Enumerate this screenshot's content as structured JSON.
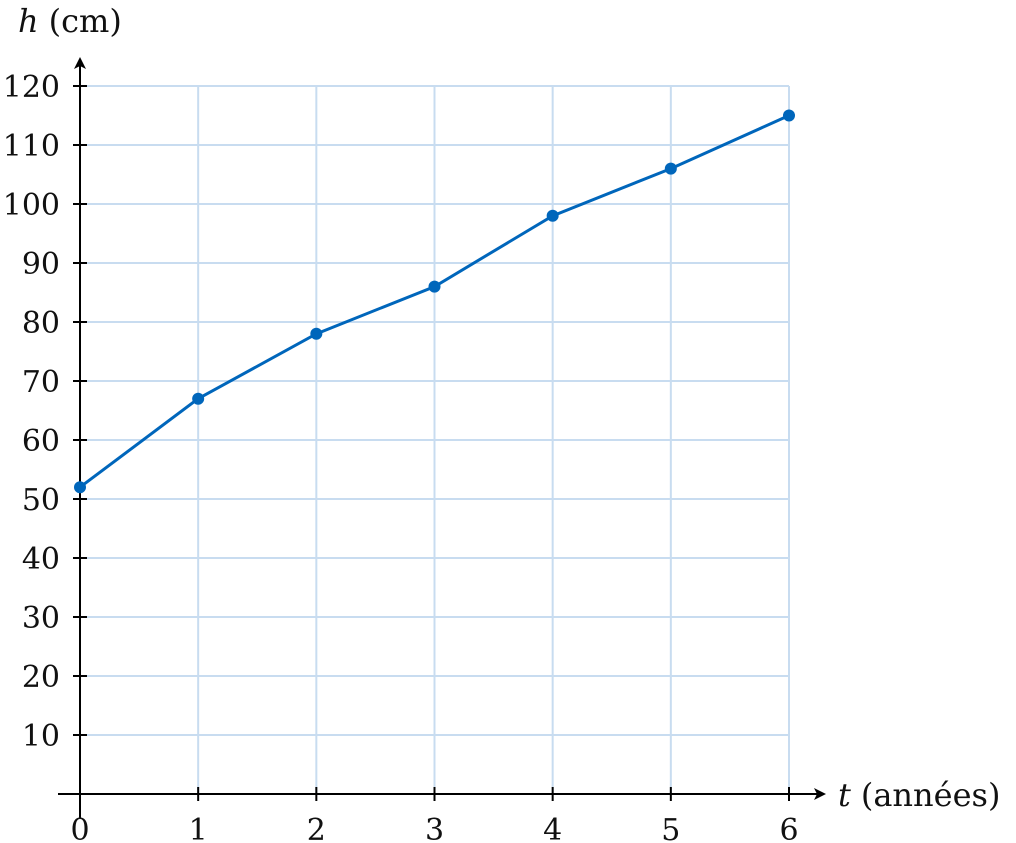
{
  "chart_data": {
    "type": "line",
    "xlabel_var": "t",
    "xlabel_unit": "(années)",
    "ylabel_var": "h",
    "ylabel_unit": "(cm)",
    "xlim": [
      0,
      6
    ],
    "ylim": [
      0,
      120
    ],
    "x_ticks": [
      0,
      1,
      2,
      3,
      4,
      5,
      6
    ],
    "y_ticks": [
      10,
      20,
      30,
      40,
      50,
      60,
      70,
      80,
      90,
      100,
      110,
      120
    ],
    "grid": true,
    "series": [
      {
        "x": [
          0,
          1,
          2,
          3,
          4,
          5,
          6
        ],
        "y": [
          52,
          67,
          78,
          86,
          98,
          106,
          115
        ],
        "color": "#0066bb"
      }
    ],
    "grid_color": "#c8dcf0"
  }
}
